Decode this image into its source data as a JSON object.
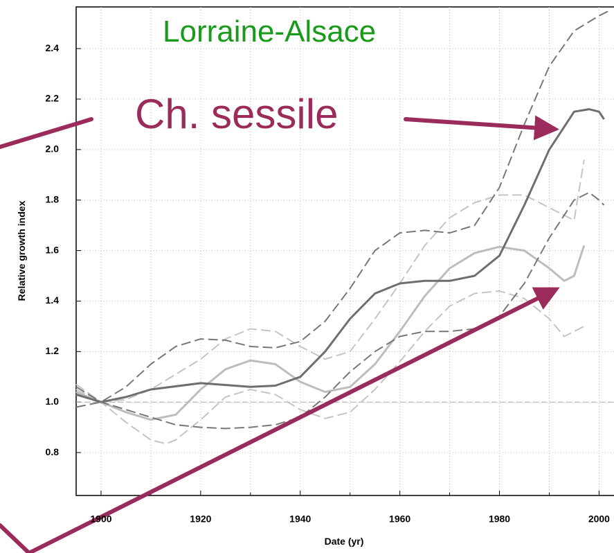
{
  "chart_data": {
    "type": "line",
    "title": "Lorraine-Alsace",
    "subtitle": "Ch. sessile",
    "x_label": "Date (yr)",
    "y_label": "Relative growth index",
    "xlim": [
      1895,
      2003
    ],
    "ylim": [
      0.63,
      2.565
    ],
    "xticks": [
      1900,
      1920,
      1940,
      1960,
      1980,
      2000
    ],
    "xminorticks": [
      1910,
      1930,
      1950,
      1970,
      1990
    ],
    "yticks": [
      0.8,
      {
        "value": 1.0,
        "label": "1.0"
      },
      1.2,
      1.4,
      1.6,
      1.8,
      {
        "value": 2.0,
        "label": "2.0"
      },
      2.2,
      2.4
    ],
    "reference_line": 1,
    "grid": true,
    "series": [
      {
        "color": "#6e6e6e",
        "dash": false,
        "width": 3,
        "x": [
          1895,
          1900,
          1905,
          1910,
          1920,
          1930,
          1935,
          1940,
          1945,
          1950,
          1955,
          1960,
          1965,
          1970,
          1975,
          1980,
          1985,
          1990,
          1995,
          1998,
          2000,
          2001
        ],
        "values": [
          1.03,
          1.0,
          1.02,
          1.05,
          1.075,
          1.06,
          1.065,
          1.1,
          1.2,
          1.33,
          1.43,
          1.47,
          1.48,
          1.48,
          1.5,
          1.58,
          1.78,
          2.0,
          2.15,
          2.16,
          2.15,
          2.12
        ]
      },
      {
        "color": "#777777",
        "dash": true,
        "width": 2,
        "x": [
          1895,
          1900,
          1905,
          1910,
          1915,
          1920,
          1925,
          1930,
          1935,
          1940,
          1945,
          1950,
          1955,
          1960,
          1965,
          1970,
          1975,
          1980,
          1985,
          1990,
          1995,
          2000,
          2002
        ],
        "values": [
          0.98,
          1.0,
          1.06,
          1.15,
          1.22,
          1.25,
          1.245,
          1.22,
          1.215,
          1.24,
          1.32,
          1.45,
          1.6,
          1.67,
          1.68,
          1.67,
          1.7,
          1.85,
          2.1,
          2.33,
          2.47,
          2.53,
          2.55
        ]
      },
      {
        "color": "#777777",
        "dash": true,
        "width": 2,
        "x": [
          1895,
          1900,
          1905,
          1910,
          1915,
          1920,
          1925,
          1930,
          1935,
          1940,
          1945,
          1950,
          1955,
          1960,
          1965,
          1970,
          1975,
          1980,
          1985,
          1990,
          1995,
          1998,
          2000,
          2001
        ],
        "values": [
          1.06,
          1.0,
          0.97,
          0.94,
          0.91,
          0.9,
          0.895,
          0.9,
          0.91,
          0.94,
          1.02,
          1.12,
          1.2,
          1.26,
          1.28,
          1.28,
          1.29,
          1.34,
          1.47,
          1.65,
          1.8,
          1.83,
          1.8,
          1.78
        ]
      },
      {
        "color": "#bdbdbd",
        "dash": false,
        "width": 3,
        "x": [
          1895,
          1900,
          1905,
          1910,
          1915,
          1920,
          1925,
          1930,
          1935,
          1940,
          1945,
          1950,
          1955,
          1960,
          1965,
          1970,
          1975,
          1980,
          1985,
          1990,
          1993,
          1995,
          1997
        ],
        "values": [
          1.04,
          1.0,
          0.96,
          0.93,
          0.95,
          1.05,
          1.13,
          1.165,
          1.15,
          1.08,
          1.04,
          1.06,
          1.15,
          1.28,
          1.42,
          1.53,
          1.59,
          1.615,
          1.6,
          1.53,
          1.48,
          1.5,
          1.62
        ]
      },
      {
        "color": "#c4c4c4",
        "dash": true,
        "width": 2,
        "x": [
          1895,
          1900,
          1905,
          1910,
          1920,
          1925,
          1930,
          1935,
          1940,
          1945,
          1950,
          1955,
          1960,
          1965,
          1970,
          1975,
          1980,
          1985,
          1990,
          1995,
          1997
        ],
        "values": [
          1.05,
          1.0,
          1.01,
          1.05,
          1.17,
          1.25,
          1.29,
          1.28,
          1.22,
          1.17,
          1.2,
          1.33,
          1.47,
          1.62,
          1.73,
          1.79,
          1.82,
          1.82,
          1.77,
          1.72,
          1.96
        ]
      },
      {
        "color": "#c4c4c4",
        "dash": true,
        "width": 2,
        "x": [
          1895,
          1900,
          1905,
          1910,
          1913,
          1915,
          1920,
          1925,
          1930,
          1935,
          1940,
          1945,
          1950,
          1955,
          1960,
          1965,
          1970,
          1975,
          1980,
          1985,
          1990,
          1993,
          1995,
          1997
        ],
        "values": [
          1.07,
          1.0,
          0.92,
          0.85,
          0.835,
          0.85,
          0.93,
          1.02,
          1.05,
          1.03,
          0.97,
          0.935,
          0.96,
          1.05,
          1.16,
          1.28,
          1.38,
          1.43,
          1.44,
          1.41,
          1.33,
          1.26,
          1.28,
          1.3
        ]
      }
    ]
  }
}
